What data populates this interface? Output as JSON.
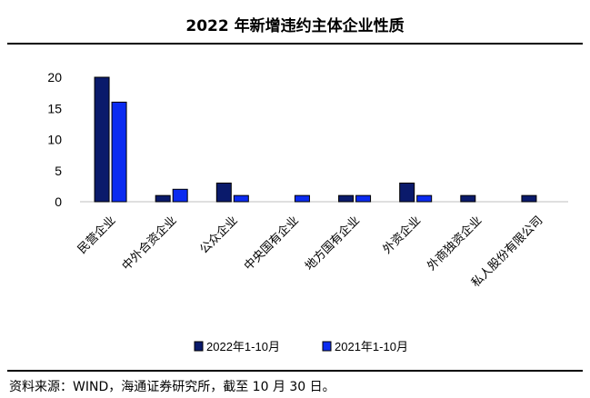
{
  "title": "2022 年新增违约主体企业性质",
  "source": "资料来源：WIND，海通证券研究所，截至 10 月 30 日。",
  "chart_data": {
    "type": "bar",
    "categories": [
      "民营企业",
      "中外合资企业",
      "公众企业",
      "中央国有企业",
      "地方国有企业",
      "外资企业",
      "外商独资企业",
      "私人股份有限公司"
    ],
    "series": [
      {
        "name": "2022年1-10月",
        "color": "#0a1a6b",
        "values": [
          20,
          1,
          3,
          0,
          1,
          3,
          1,
          1
        ]
      },
      {
        "name": "2021年1-10月",
        "color": "#0b2bf0",
        "values": [
          16,
          2,
          1,
          1,
          1,
          1,
          0,
          0
        ]
      }
    ],
    "yticks": [
      0,
      5,
      10,
      15,
      20
    ],
    "ylim": [
      0,
      20
    ],
    "legend_position": "bottom",
    "grid": false
  }
}
